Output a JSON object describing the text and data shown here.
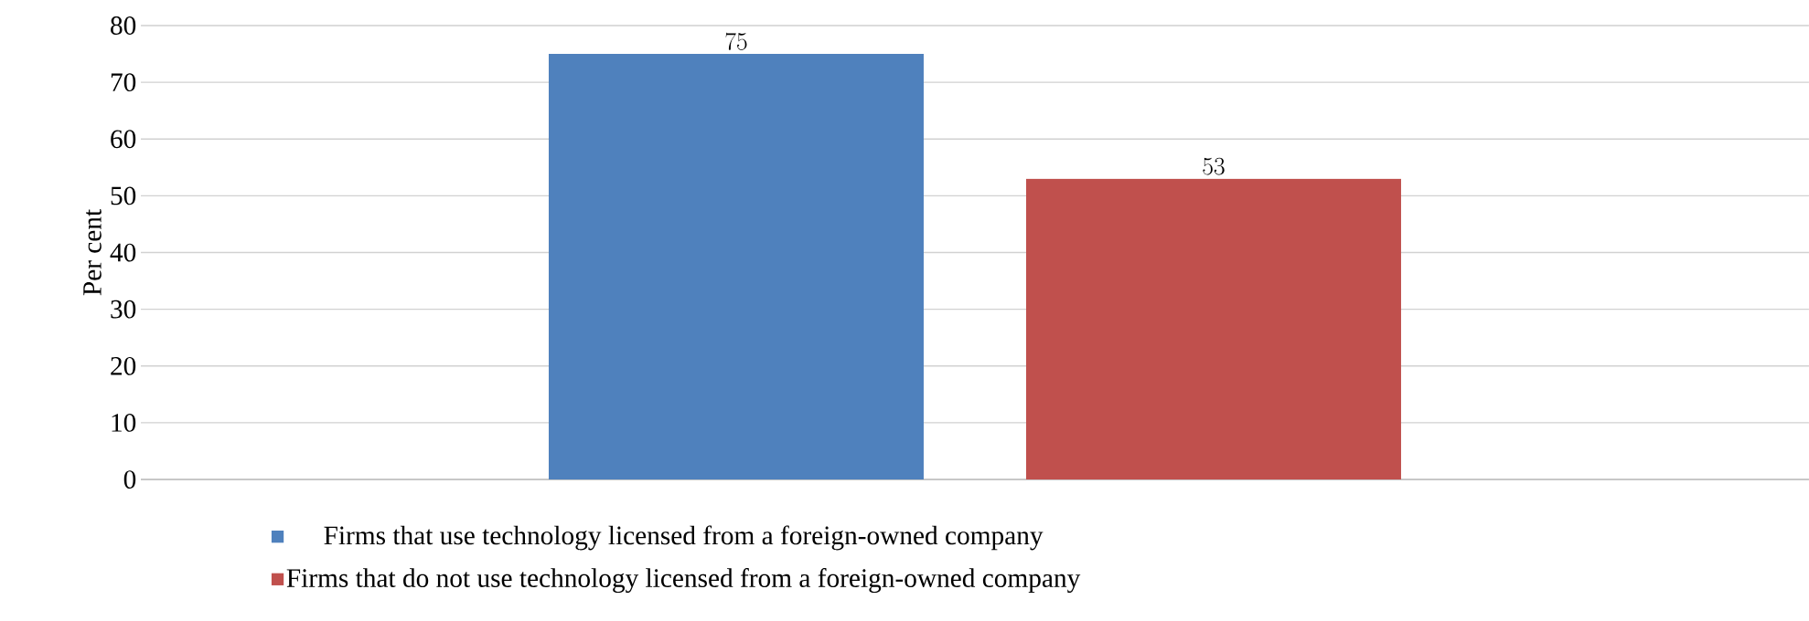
{
  "chart_data": {
    "type": "bar",
    "ylabel": "Per cent",
    "categories": [
      null
    ],
    "series": [
      {
        "name": "Firms that use technology licensed from a foreign-owned company",
        "color": "#4f81bd",
        "values": [
          75
        ]
      },
      {
        "name": "Firms that  do not use technology licensed from a foreign-owned company",
        "color": "#c0504d",
        "values": [
          53
        ]
      }
    ],
    "ylim": [
      0,
      80
    ],
    "yticks": [
      0,
      10,
      20,
      30,
      40,
      50,
      60,
      70,
      80
    ],
    "grid": "y",
    "legend": "bottom",
    "data_labels": true
  }
}
